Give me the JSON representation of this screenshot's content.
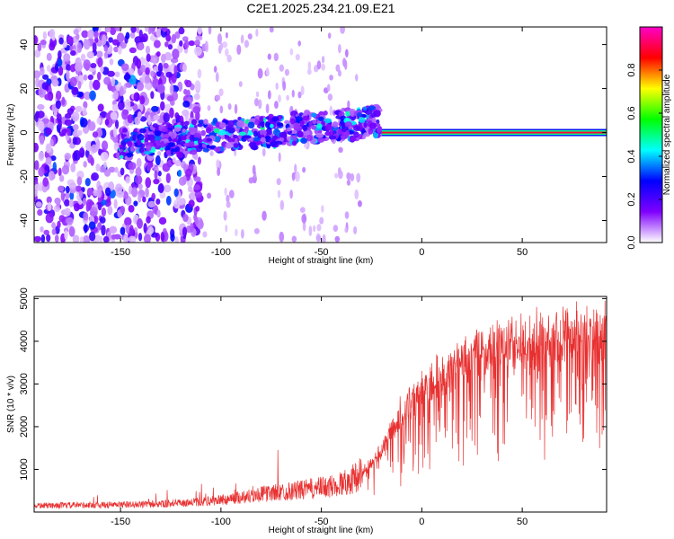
{
  "title": "C2E1.2025.234.21.09.E21",
  "chart_data": [
    {
      "type": "heatmap",
      "title": "C2E1.2025.234.21.09.E21",
      "xlabel": "Height of straight line (km)",
      "ylabel": "Frequency (Hz)",
      "xlim": [
        -193,
        92
      ],
      "ylim": [
        -50,
        48
      ],
      "xticks": [
        -150,
        -100,
        -50,
        0,
        50
      ],
      "yticks": [
        -40,
        -20,
        0,
        20,
        40
      ],
      "colorbar": {
        "label": "Normalized spectral amplitude",
        "range": [
          0,
          1
        ],
        "ticks": [
          0.0,
          0.2,
          0.4,
          0.6,
          0.8
        ],
        "colors": [
          "#ffffff",
          "#7f00ff",
          "#0000ff",
          "#00ffff",
          "#00ff00",
          "#ffff00",
          "#ff0000",
          "#ff00c8"
        ]
      },
      "features": {
        "noise_region_x": [
          -193,
          -110
        ],
        "noise_amplitude": 0.15,
        "band_x": [
          -150,
          -20
        ],
        "band_center_hz_start": -5,
        "band_center_hz_end": 5,
        "tone_x": [
          -20,
          92
        ],
        "tone_hz": 0,
        "tone_amplitude": 0.9
      }
    },
    {
      "type": "line",
      "xlabel": "Height of straight line (km)",
      "ylabel": "SNR (10 * v/v)",
      "xlim": [
        -193,
        92
      ],
      "ylim": [
        0,
        5050
      ],
      "xticks": [
        -150,
        -100,
        -50,
        0,
        50
      ],
      "yticks": [
        1000,
        2000,
        3000,
        4000,
        5000
      ],
      "color": "#e83030",
      "series_profile": {
        "x": [
          -193,
          -150,
          -120,
          -100,
          -80,
          -60,
          -45,
          -35,
          -28,
          -20,
          -15,
          -10,
          -5,
          0,
          5,
          10,
          20,
          30,
          40,
          50,
          60,
          70,
          80,
          92
        ],
        "mean_snr": [
          150,
          170,
          200,
          280,
          420,
          520,
          600,
          750,
          1000,
          1500,
          2000,
          2400,
          2700,
          2900,
          3100,
          3300,
          3600,
          3800,
          3950,
          4050,
          4150,
          4250,
          4300,
          4350
        ]
      }
    }
  ]
}
